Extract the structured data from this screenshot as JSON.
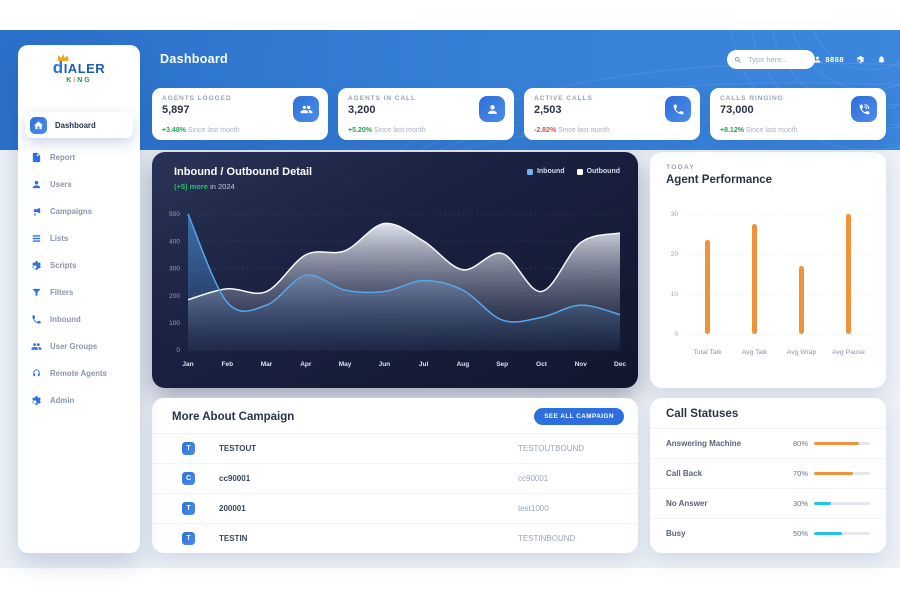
{
  "header": {
    "title": "Dashboard",
    "search_placeholder": "Type here...",
    "user_label": "8888"
  },
  "logo": {
    "line1": "DIALER",
    "line2": "KING"
  },
  "sidebar": {
    "items": [
      {
        "label": "Dashboard",
        "icon": "home",
        "active": true
      },
      {
        "label": "Report",
        "icon": "report",
        "active": false
      },
      {
        "label": "Users",
        "icon": "user",
        "active": false
      },
      {
        "label": "Campaigns",
        "icon": "megaphone",
        "active": false
      },
      {
        "label": "Lists",
        "icon": "list",
        "active": false
      },
      {
        "label": "Scripts",
        "icon": "gear",
        "active": false
      },
      {
        "label": "Filters",
        "icon": "funnel",
        "active": false
      },
      {
        "label": "Inbound",
        "icon": "phone",
        "active": false
      },
      {
        "label": "User Groups",
        "icon": "group",
        "active": false
      },
      {
        "label": "Remote Agents",
        "icon": "headset",
        "active": false
      },
      {
        "label": "Admin",
        "icon": "gear",
        "active": false
      }
    ]
  },
  "stats": [
    {
      "label": "AGENTS LOGGED",
      "value": "5,897",
      "delta": "+3.48%",
      "direction": "up",
      "note": "Since last month",
      "icon": "group"
    },
    {
      "label": "AGENTS IN CALL",
      "value": "3,200",
      "delta": "+5.20%",
      "direction": "up",
      "note": "Since last month",
      "icon": "user"
    },
    {
      "label": "ACTIVE CALLS",
      "value": "2,503",
      "delta": "-2.82%",
      "direction": "down",
      "note": "Since last month",
      "icon": "phone"
    },
    {
      "label": "CALLS RINGING",
      "value": "73,000",
      "delta": "+8.12%",
      "direction": "up",
      "note": "Since last month",
      "icon": "phone-ring"
    }
  ],
  "chart_data": [
    {
      "type": "area",
      "title": "Inbound / Outbound Detail",
      "subtitle_highlight": "(+5) more",
      "subtitle_rest": " in 2024",
      "categories": [
        "Jan",
        "Feb",
        "Mar",
        "Apr",
        "May",
        "Jun",
        "Jul",
        "Aug",
        "Sep",
        "Oct",
        "Nov",
        "Dec"
      ],
      "series": [
        {
          "name": "Inbound",
          "color": "#58a6ec",
          "legend_color": "#6cb2f4",
          "values": [
            500,
            175,
            165,
            275,
            220,
            215,
            255,
            220,
            110,
            120,
            165,
            130
          ]
        },
        {
          "name": "Outbound",
          "color": "#f7f9fc",
          "legend_color": "#ffffff",
          "values": [
            185,
            225,
            215,
            350,
            365,
            465,
            400,
            295,
            355,
            215,
            395,
            430
          ]
        }
      ],
      "ylim": [
        0,
        500
      ],
      "yticks": [
        0,
        100,
        200,
        300,
        400,
        500
      ],
      "legend_position": "top-right",
      "grid": "dashed"
    },
    {
      "type": "bar",
      "eyebrow": "TODAY",
      "title": "Agent Performance",
      "categories": [
        "Total Talk",
        "Avg Talk",
        "Avg Wrap",
        "Avg Pause"
      ],
      "values": [
        23.5,
        27.5,
        17,
        30
      ],
      "bar_color": "#f0923c",
      "ylim": [
        0,
        30
      ],
      "yticks": [
        0,
        10,
        20,
        30
      ],
      "grid": "dashed"
    }
  ],
  "campaigns": {
    "title": "More About Campaign",
    "button_label": "SEE ALL CAMPAIGN",
    "rows": [
      {
        "badge": "T",
        "name": "TESTOUT",
        "desc": "TESTOUTBOUND"
      },
      {
        "badge": "C",
        "name": "cc90001",
        "desc": "cc90001"
      },
      {
        "badge": "T",
        "name": "200001",
        "desc": "test1000"
      },
      {
        "badge": "T",
        "name": "TESTIN",
        "desc": "TESTINBOUND"
      }
    ]
  },
  "call_statuses": {
    "title": "Call Statuses",
    "rows": [
      {
        "label": "Answering Machine",
        "percent": 80,
        "color": "#f0923c"
      },
      {
        "label": "Call Back",
        "percent": 70,
        "color": "#f0923c"
      },
      {
        "label": "No Answer",
        "percent": 30,
        "color": "#27c2ee"
      },
      {
        "label": "Busy",
        "percent": 50,
        "color": "#27c2ee"
      }
    ]
  },
  "colors": {
    "accent_blue": "#2f6fdb",
    "green": "#21a358",
    "red": "#e5484d",
    "orange": "#f0923c",
    "cyan": "#27c2ee"
  }
}
